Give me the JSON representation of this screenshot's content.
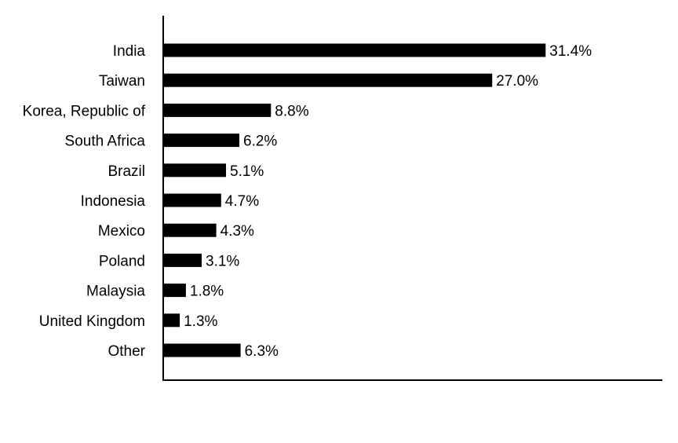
{
  "chart_data": {
    "type": "bar",
    "orientation": "horizontal",
    "title": "",
    "xlabel": "",
    "ylabel": "",
    "categories": [
      "India",
      "Taiwan",
      "Korea, Republic of",
      "South Africa",
      "Brazil",
      "Indonesia",
      "Mexico",
      "Poland",
      "Malaysia",
      "United Kingdom",
      "Other"
    ],
    "values": [
      31.4,
      27.0,
      8.8,
      6.2,
      5.1,
      4.7,
      4.3,
      3.1,
      1.8,
      1.3,
      6.3
    ],
    "value_labels": [
      "31.4%",
      "27.0%",
      "8.8%",
      "6.2%",
      "5.1%",
      "4.7%",
      "4.3%",
      "3.1%",
      "1.8%",
      "1.3%",
      "6.3%"
    ],
    "unit": "%",
    "xlim": [
      0,
      41
    ],
    "grid": false,
    "legend": "none",
    "bar_color": "#000000"
  }
}
